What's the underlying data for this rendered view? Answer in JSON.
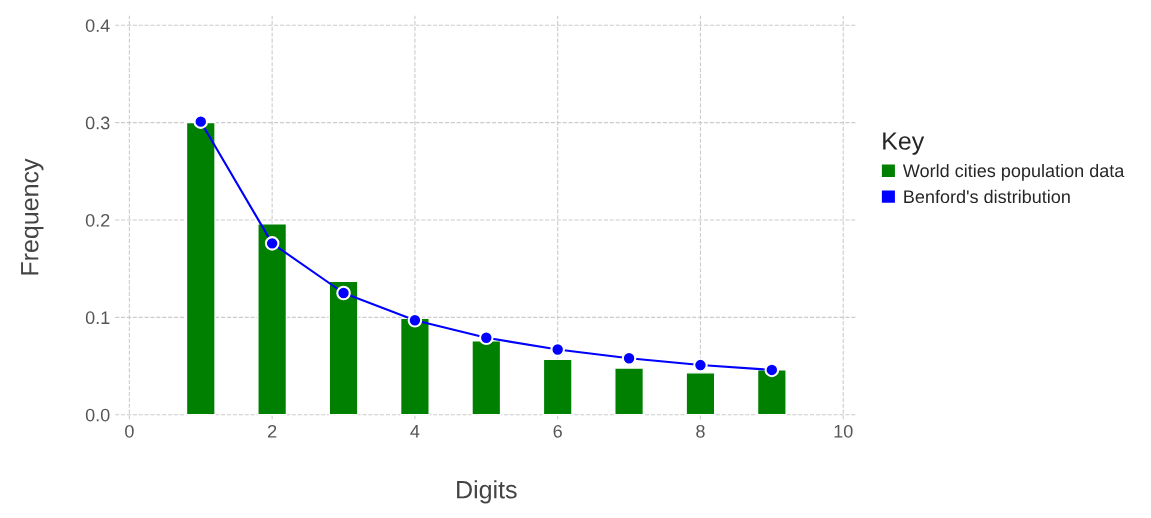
{
  "chart_data": {
    "type": "bar",
    "xlabel": "Digits",
    "ylabel": "Frequency",
    "legend_title": "Key",
    "legend": "right",
    "grid": true,
    "marker": "circle",
    "line_style": "solid",
    "x": [
      1,
      2,
      3,
      4,
      5,
      6,
      7,
      8,
      9
    ],
    "series": [
      {
        "name": "World cities population data",
        "type": "bar",
        "color": "#008000",
        "values": [
          0.3,
          0.196,
          0.137,
          0.099,
          0.076,
          0.057,
          0.048,
          0.043,
          0.046
        ]
      },
      {
        "name": "Benford's distribution",
        "type": "line",
        "color": "#0000ff",
        "values": [
          0.301,
          0.176,
          0.125,
          0.097,
          0.079,
          0.067,
          0.058,
          0.051,
          0.046
        ]
      }
    ],
    "xlim": [
      -0.2,
      10.2
    ],
    "xticks": [
      0,
      2,
      4,
      6,
      8,
      10
    ],
    "ylim": [
      -0.005,
      0.41
    ],
    "yticks": [
      {
        "value": 0,
        "label": "0.0"
      },
      {
        "value": 0.1,
        "label": "0.1"
      },
      {
        "value": 0.2,
        "label": "0.2"
      },
      {
        "value": 0.3,
        "label": "0.3"
      },
      {
        "value": 0.4,
        "label": "0.4"
      }
    ]
  }
}
